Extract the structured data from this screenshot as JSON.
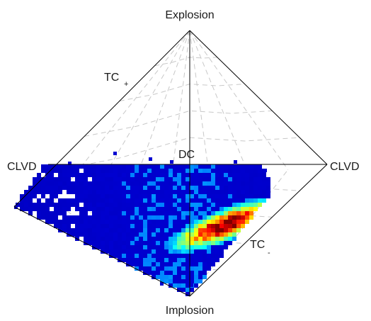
{
  "diagram": {
    "labels": {
      "top": "Explosion",
      "bottom": "Implosion",
      "left": "CLVD",
      "right": "CLVD",
      "center": "DC",
      "tc_plus_main": "TC",
      "tc_plus_sub": "+",
      "tc_minus_main": "TC",
      "tc_minus_sub": "-"
    },
    "colors": {
      "outline": "#000000",
      "grid": "#c8c8c8",
      "colormap": "jet"
    },
    "density_map": {
      "description_values": "cell density normalized 0-1; peak near TC- region",
      "peak_density": 1.0
    }
  }
}
